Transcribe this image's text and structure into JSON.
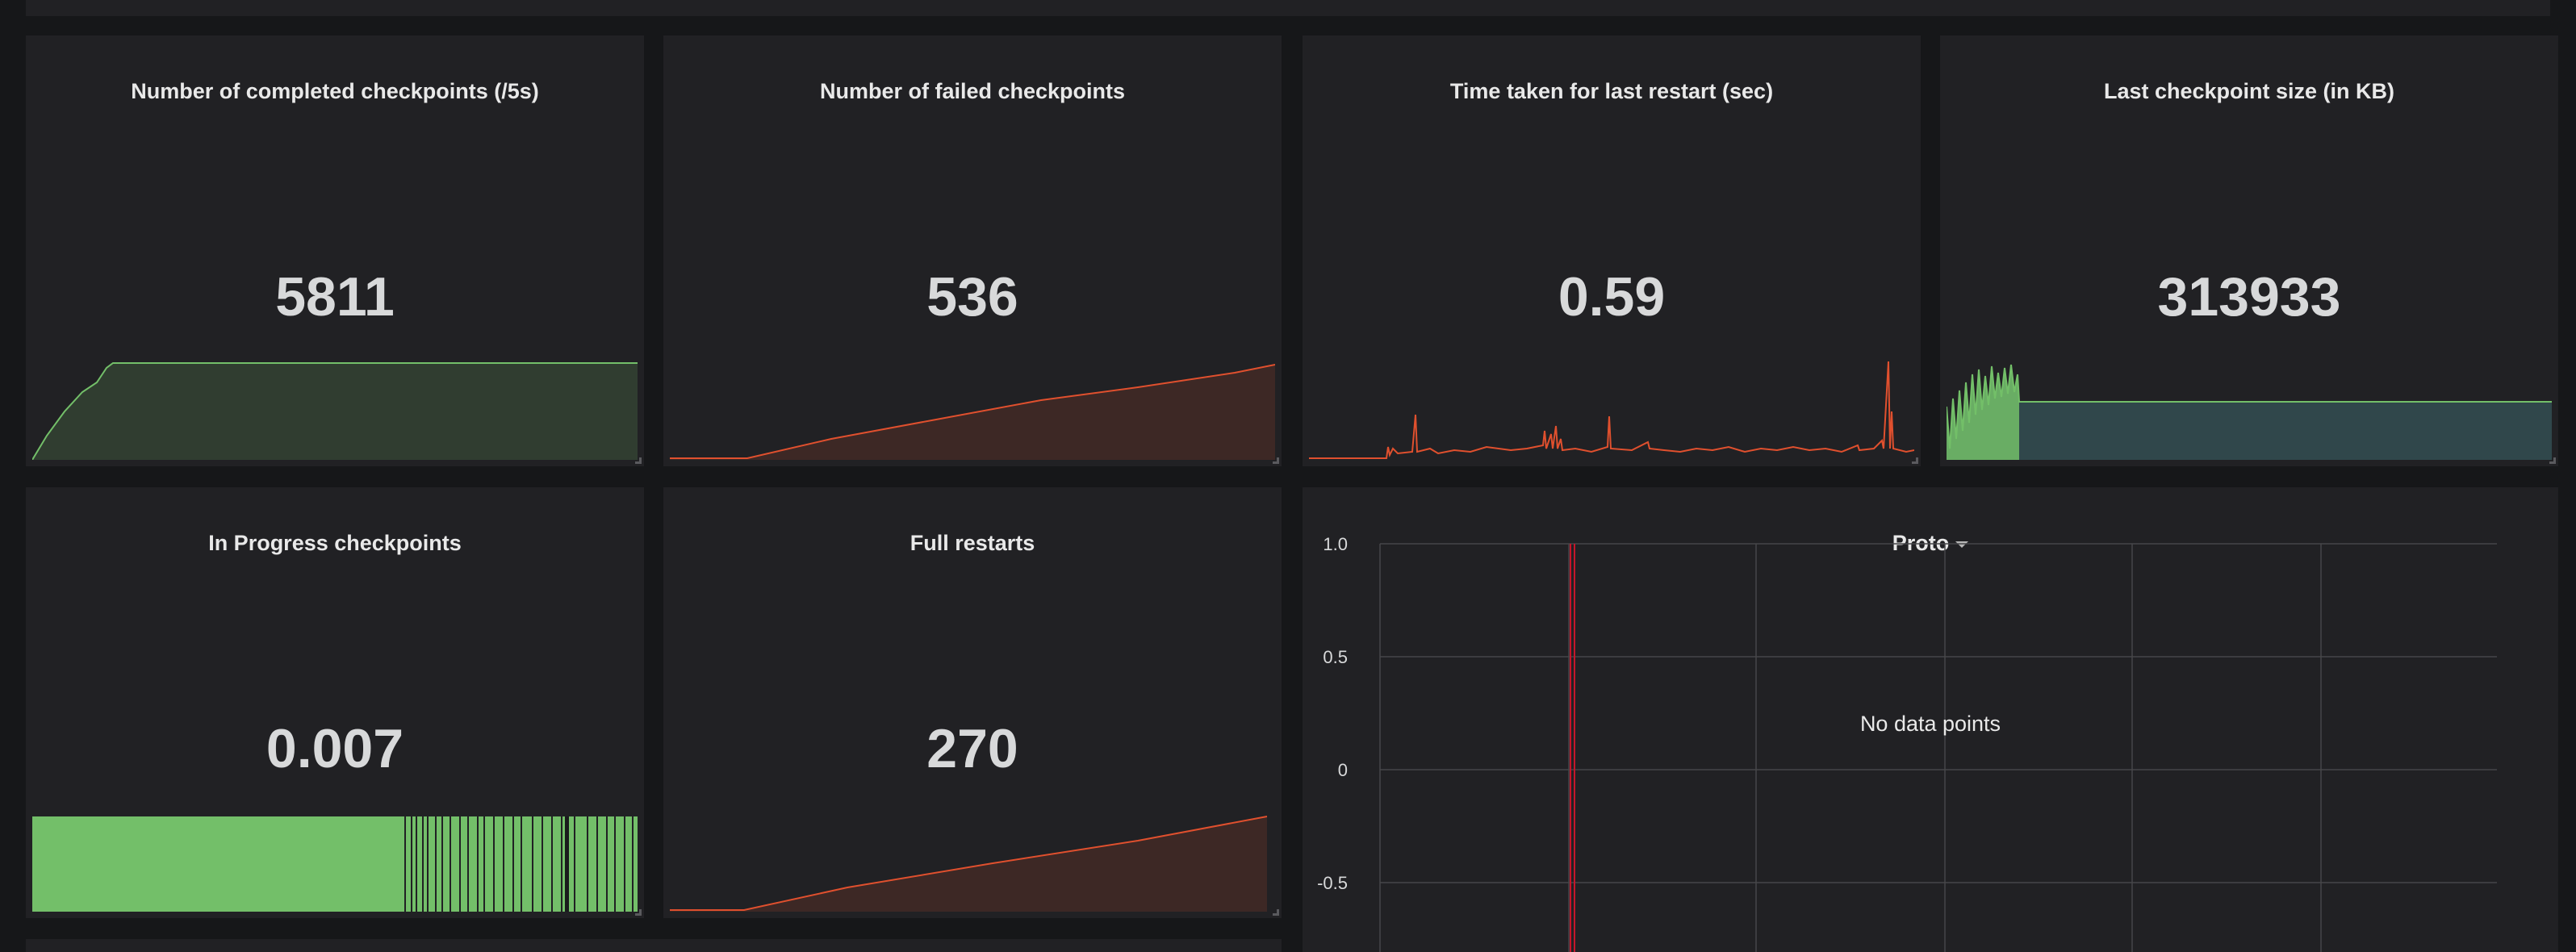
{
  "panels": [
    {
      "title": "Number of completed checkpoints (/5s)",
      "value": "5811",
      "color": "#73bf69"
    },
    {
      "title": "Number of failed checkpoints",
      "value": "536",
      "color": "#e0502e"
    },
    {
      "title": "Time taken for last restart (sec)",
      "value": "0.59",
      "color": "#e0502e"
    },
    {
      "title": "Last checkpoint size (in KB)",
      "value": "313933",
      "color": "#73bf69"
    },
    {
      "title": "In Progress checkpoints",
      "value": "0.007",
      "color": "#73bf69"
    },
    {
      "title": "Full restarts",
      "value": "270",
      "color": "#e0502e"
    }
  ],
  "proto": {
    "title": "Proto",
    "message": "No data points",
    "y_ticks": [
      "1.0",
      "0.5",
      "0",
      "-0.5"
    ]
  },
  "colors": {
    "background": "#161719",
    "panel": "#212124",
    "green": "#73bf69",
    "red": "#e0502e"
  }
}
